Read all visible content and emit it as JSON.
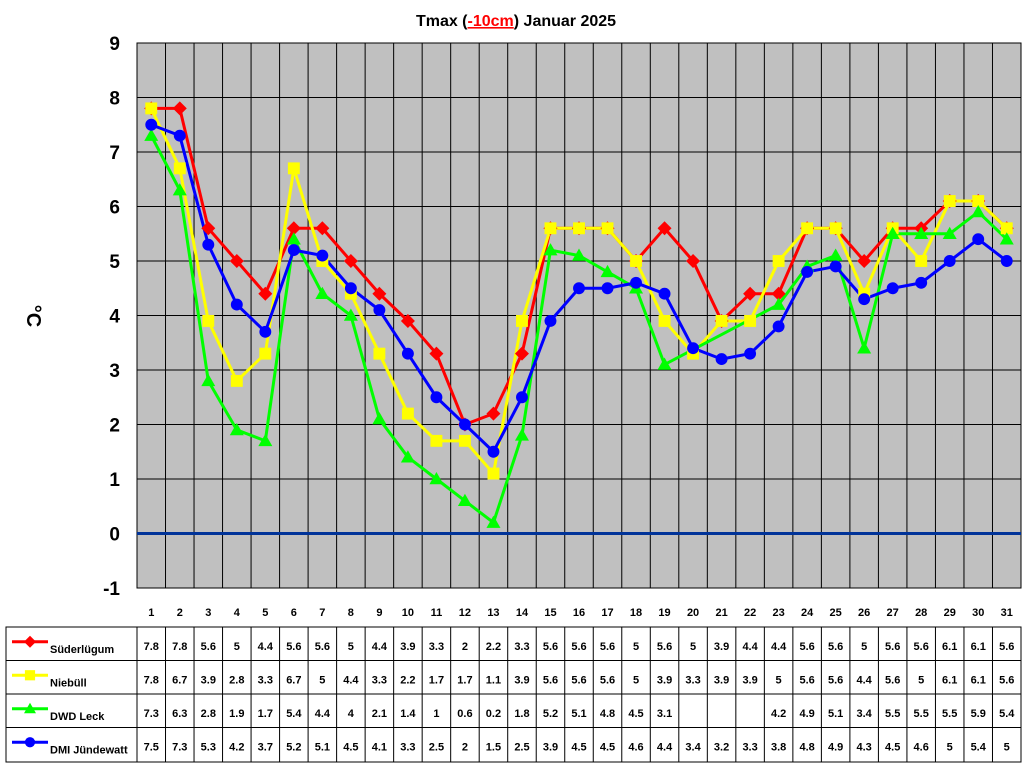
{
  "chart_data": {
    "type": "line",
    "title": {
      "prefix": "Tmax (",
      "highlight": "-10cm",
      "suffix": ") Januar 2025"
    },
    "ylabel": "°C",
    "ylim": [
      -1,
      9
    ],
    "yticks": [
      "9",
      "8",
      "7",
      "6",
      "5",
      "4",
      "3",
      "2",
      "1",
      "0",
      "-1"
    ],
    "grid": true,
    "zero_line_color": "#003399",
    "plot_background": "#c0c0c0",
    "categories": [
      "1",
      "2",
      "3",
      "4",
      "5",
      "6",
      "7",
      "8",
      "9",
      "10",
      "11",
      "12",
      "13",
      "14",
      "15",
      "16",
      "17",
      "18",
      "19",
      "20",
      "21",
      "22",
      "23",
      "24",
      "25",
      "26",
      "27",
      "28",
      "29",
      "30",
      "31"
    ],
    "series": [
      {
        "name": "Süderlügum",
        "color": "#ff0000",
        "marker": "diamond",
        "values": [
          7.8,
          7.8,
          5.6,
          5,
          4.4,
          5.6,
          5.6,
          5,
          4.4,
          3.9,
          3.3,
          2,
          2.2,
          3.3,
          5.6,
          5.6,
          5.6,
          5,
          5.6,
          5,
          3.9,
          4.4,
          4.4,
          5.6,
          5.6,
          5,
          5.6,
          5.6,
          6.1,
          6.1,
          5.6
        ],
        "labels": [
          "7.8",
          "7.8",
          "5.6",
          "5",
          "4.4",
          "5.6",
          "5.6",
          "5",
          "4.4",
          "3.9",
          "3.3",
          "2",
          "2.2",
          "3.3",
          "5.6",
          "5.6",
          "5.6",
          "5",
          "5.6",
          "5",
          "3.9",
          "4.4",
          "4.4",
          "5.6",
          "5.6",
          "5",
          "5.6",
          "5.6",
          "6.1",
          "6.1",
          "5.6"
        ]
      },
      {
        "name": "Niebüll",
        "color": "#ffff00",
        "marker": "square",
        "values": [
          7.8,
          6.7,
          3.9,
          2.8,
          3.3,
          6.7,
          5,
          4.4,
          3.3,
          2.2,
          1.7,
          1.7,
          1.1,
          3.9,
          5.6,
          5.6,
          5.6,
          5,
          3.9,
          3.3,
          3.9,
          3.9,
          5,
          5.6,
          5.6,
          4.4,
          5.6,
          5,
          6.1,
          6.1,
          5.6
        ],
        "labels": [
          "7.8",
          "6.7",
          "3.9",
          "2.8",
          "3.3",
          "6.7",
          "5",
          "4.4",
          "3.3",
          "2.2",
          "1.7",
          "1.7",
          "1.1",
          "3.9",
          "5.6",
          "5.6",
          "5.6",
          "5",
          "3.9",
          "3.3",
          "3.9",
          "3.9",
          "5",
          "5.6",
          "5.6",
          "4.4",
          "5.6",
          "5",
          "6.1",
          "6.1",
          "5.6"
        ]
      },
      {
        "name": "DWD Leck",
        "color": "#00ff00",
        "marker": "triangle",
        "values": [
          7.3,
          6.3,
          2.8,
          1.9,
          1.7,
          5.4,
          4.4,
          4,
          2.1,
          1.4,
          1,
          0.6,
          0.2,
          1.8,
          5.2,
          5.1,
          4.8,
          4.5,
          3.1,
          null,
          null,
          null,
          4.2,
          4.9,
          5.1,
          3.4,
          5.5,
          5.5,
          5.5,
          5.9,
          5.4
        ],
        "labels": [
          "7.3",
          "6.3",
          "2.8",
          "1.9",
          "1.7",
          "5.4",
          "4.4",
          "4",
          "2.1",
          "1.4",
          "1",
          "0.6",
          "0.2",
          "1.8",
          "5.2",
          "5.1",
          "4.8",
          "4.5",
          "3.1",
          "",
          "",
          "",
          "4.2",
          "4.9",
          "5.1",
          "3.4",
          "5.5",
          "5.5",
          "5.5",
          "5.9",
          "5.4"
        ]
      },
      {
        "name": "DMI Jündewatt",
        "color": "#0000ff",
        "marker": "circle",
        "values": [
          7.5,
          7.3,
          5.3,
          4.2,
          3.7,
          5.2,
          5.1,
          4.5,
          4.1,
          3.3,
          2.5,
          2,
          1.5,
          2.5,
          3.9,
          4.5,
          4.5,
          4.6,
          4.4,
          3.4,
          3.2,
          3.3,
          3.8,
          4.8,
          4.9,
          4.3,
          4.5,
          4.6,
          5,
          5.4,
          5
        ],
        "labels": [
          "7.5",
          "7.3",
          "5.3",
          "4.2",
          "3.7",
          "5.2",
          "5.1",
          "4.5",
          "4.1",
          "3.3",
          "2.5",
          "2",
          "1.5",
          "2.5",
          "3.9",
          "4.5",
          "4.5",
          "4.6",
          "4.4",
          "3.4",
          "3.2",
          "3.3",
          "3.8",
          "4.8",
          "4.9",
          "4.3",
          "4.5",
          "4.6",
          "5",
          "5.4",
          "5"
        ]
      }
    ]
  }
}
